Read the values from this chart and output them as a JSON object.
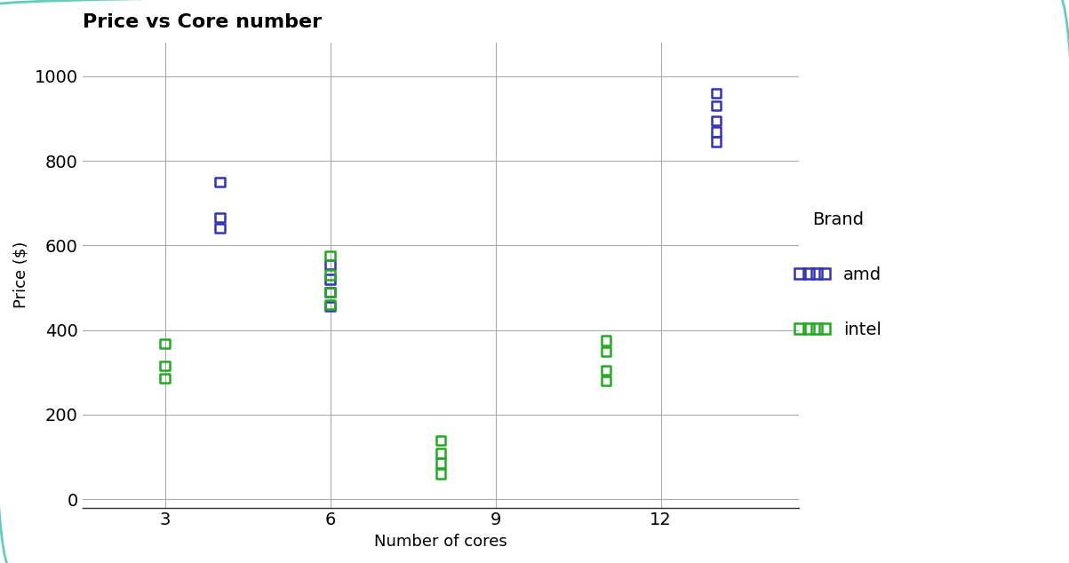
{
  "title": "Price vs Core number",
  "xlabel": "Number of cores",
  "ylabel": "Price ($)",
  "xlim": [
    1.5,
    14.5
  ],
  "ylim": [
    -20,
    1080
  ],
  "xticks": [
    3,
    6,
    9,
    12
  ],
  "yticks": [
    0,
    200,
    400,
    600,
    800,
    1000
  ],
  "bg_color": "#ffffff",
  "fig_bg_color": "#ffffff",
  "border_color": "#66ccbb",
  "amd_color": "#3333bb",
  "intel_color": "#22aa22",
  "amd_data": {
    "cores": [
      4,
      4,
      4,
      6,
      6,
      6,
      6,
      13,
      13,
      13,
      13,
      13
    ],
    "prices": [
      640,
      665,
      750,
      455,
      490,
      520,
      555,
      845,
      868,
      895,
      930,
      960
    ]
  },
  "intel_data": {
    "cores": [
      3,
      3,
      3,
      6,
      6,
      6,
      6,
      8,
      8,
      8,
      8,
      11,
      11,
      11,
      11
    ],
    "prices": [
      285,
      315,
      368,
      460,
      490,
      530,
      575,
      60,
      85,
      108,
      138,
      280,
      305,
      348,
      375
    ]
  },
  "marker_size": 55,
  "marker_style": "s",
  "marker_linewidth": 1.8,
  "title_fontsize": 16,
  "label_fontsize": 13,
  "tick_fontsize": 14,
  "legend_fontsize": 14
}
